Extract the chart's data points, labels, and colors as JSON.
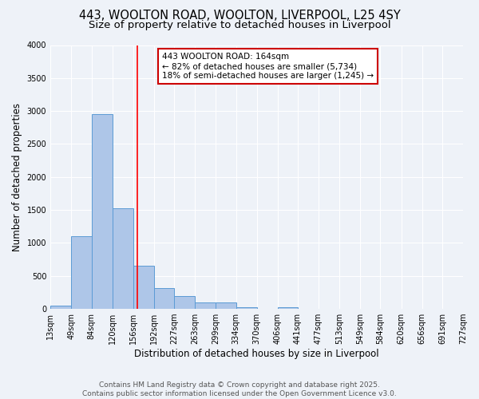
{
  "title_line1": "443, WOOLTON ROAD, WOOLTON, LIVERPOOL, L25 4SY",
  "title_line2": "Size of property relative to detached houses in Liverpool",
  "xlabel": "Distribution of detached houses by size in Liverpool",
  "ylabel": "Number of detached properties",
  "bin_edges": [
    13,
    49,
    84,
    120,
    156,
    192,
    227,
    263,
    299,
    334,
    370,
    406,
    441,
    477,
    513,
    549,
    584,
    620,
    656,
    691,
    727
  ],
  "bar_heights": [
    50,
    1100,
    2950,
    1530,
    650,
    320,
    200,
    100,
    100,
    30,
    0,
    20,
    0,
    0,
    0,
    0,
    0,
    0,
    0,
    0
  ],
  "bar_color": "#aec6e8",
  "bar_edge_color": "#5b9bd5",
  "red_line_x": 164,
  "ylim": [
    0,
    4000
  ],
  "yticks": [
    0,
    500,
    1000,
    1500,
    2000,
    2500,
    3000,
    3500,
    4000
  ],
  "annotation_text": "443 WOOLTON ROAD: 164sqm\n← 82% of detached houses are smaller (5,734)\n18% of semi-detached houses are larger (1,245) →",
  "annotation_box_color": "#ffffff",
  "annotation_box_edge": "#cc0000",
  "footer_line1": "Contains HM Land Registry data © Crown copyright and database right 2025.",
  "footer_line2": "Contains public sector information licensed under the Open Government Licence v3.0.",
  "bg_color": "#eef2f8",
  "grid_color": "#ffffff",
  "title_fontsize": 10.5,
  "subtitle_fontsize": 9.5,
  "axis_label_fontsize": 8.5,
  "tick_fontsize": 7,
  "footer_fontsize": 6.5,
  "annotation_fontsize": 7.5
}
